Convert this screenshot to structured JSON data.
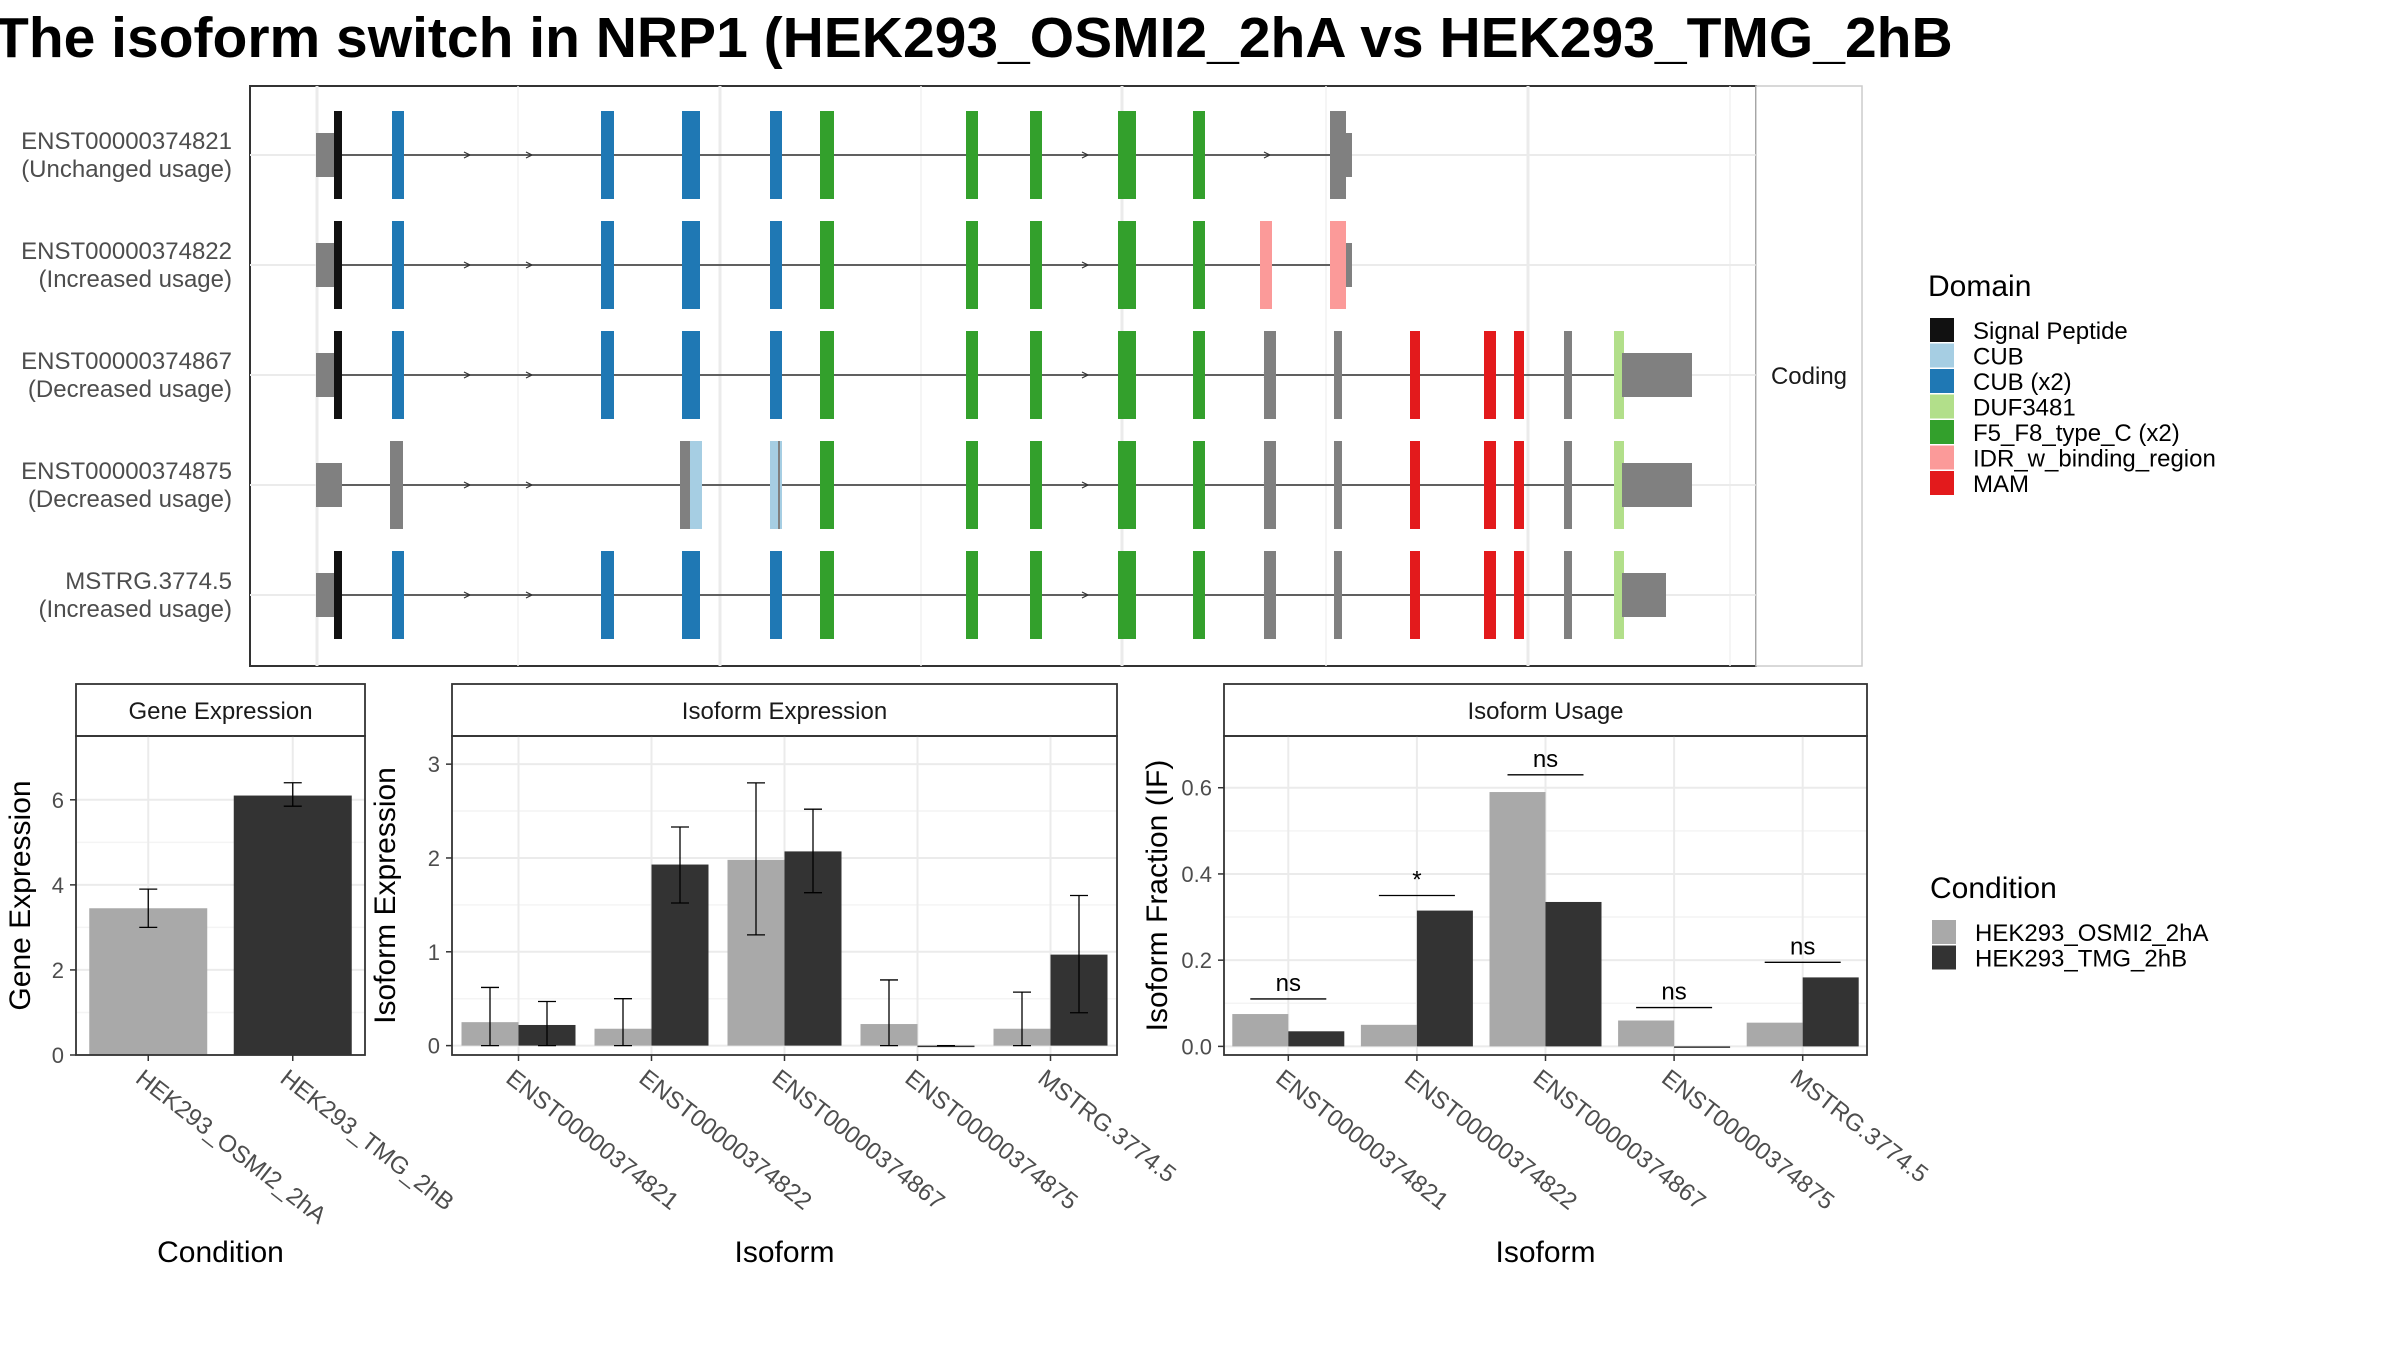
{
  "title": "The isoform switch in NRP1 (HEK293_OSMI2_2hA vs HEK293_TMG_2hB",
  "colors": {
    "condition_a": "#a9a9a9",
    "condition_b": "#333333",
    "intron": "#333333",
    "exon": "#808080",
    "panel_border": "#333333",
    "grid": "#ebebeb",
    "strip_bg": "#ffffff"
  },
  "structure": {
    "facet_label": "Coding",
    "isoforms": [
      {
        "id": "ENST00000374821",
        "usage": "(Unchanged usage)"
      },
      {
        "id": "ENST00000374822",
        "usage": "(Increased usage)"
      },
      {
        "id": "ENST00000374867",
        "usage": "(Decreased usage)"
      },
      {
        "id": "ENST00000374875",
        "usage": "(Decreased usage)"
      },
      {
        "id": "MSTRG.3774.5",
        "usage": "(Increased usage)"
      }
    ],
    "legend_title": "Domain",
    "domains": [
      {
        "name": "Signal Peptide",
        "color": "#111111"
      },
      {
        "name": "CUB",
        "color": "#a6cee3"
      },
      {
        "name": "CUB (x2)",
        "color": "#1f78b4"
      },
      {
        "name": "DUF3481",
        "color": "#b2df8a"
      },
      {
        "name": "F5_F8_type_C (x2)",
        "color": "#33a02c"
      },
      {
        "name": "IDR_w_binding_region",
        "color": "#fb9a99"
      },
      {
        "name": "MAM",
        "color": "#e31a1c"
      }
    ]
  },
  "condition_legend": {
    "title": "Condition",
    "items": [
      {
        "name": "HEK293_OSMI2_2hA",
        "color": "#a9a9a9"
      },
      {
        "name": "HEK293_TMG_2hB",
        "color": "#333333"
      }
    ]
  },
  "chart_data": [
    {
      "type": "bar",
      "title": "Gene Expression",
      "xlabel": "Condition",
      "ylabel": "Gene Expression",
      "ylim": [
        0,
        7.5
      ],
      "yticks": [
        0,
        2,
        4,
        6
      ],
      "categories": [
        "HEK293_OSMI2_2hA",
        "HEK293_TMG_2hB"
      ],
      "values": [
        3.45,
        6.1
      ],
      "error_low": [
        3.0,
        5.85
      ],
      "error_high": [
        3.9,
        6.4
      ]
    },
    {
      "type": "bar",
      "title": "Isoform Expression",
      "xlabel": "Isoform",
      "ylabel": "Isoform Expression",
      "ylim": [
        -0.1,
        3.3
      ],
      "yticks": [
        0,
        1,
        2,
        3
      ],
      "categories": [
        "ENST00000374821",
        "ENST00000374822",
        "ENST00000374867",
        "ENST00000374875",
        "MSTRG.3774.5"
      ],
      "series": [
        {
          "name": "HEK293_OSMI2_2hA",
          "values": [
            0.25,
            0.18,
            1.98,
            0.23,
            0.18
          ],
          "error_low": [
            0.0,
            0.0,
            1.18,
            0.0,
            0.0
          ],
          "error_high": [
            0.62,
            0.5,
            2.8,
            0.7,
            0.57
          ]
        },
        {
          "name": "HEK293_TMG_2hB",
          "values": [
            0.22,
            1.93,
            2.07,
            0.0,
            0.97
          ],
          "error_low": [
            0.0,
            1.52,
            1.63,
            0.0,
            0.35
          ],
          "error_high": [
            0.47,
            2.33,
            2.52,
            0.0,
            1.6
          ]
        }
      ]
    },
    {
      "type": "bar",
      "title": "Isoform Usage",
      "xlabel": "Isoform",
      "ylabel": "Isoform Fraction (IF)",
      "ylim": [
        -0.02,
        0.72
      ],
      "yticks": [
        "0.0",
        "0.2",
        "0.4",
        "0.6"
      ],
      "categories": [
        "ENST00000374821",
        "ENST00000374822",
        "ENST00000374867",
        "ENST00000374875",
        "MSTRG.3774.5"
      ],
      "series": [
        {
          "name": "HEK293_OSMI2_2hA",
          "values": [
            0.075,
            0.05,
            0.59,
            0.06,
            0.055
          ]
        },
        {
          "name": "HEK293_TMG_2hB",
          "values": [
            0.035,
            0.315,
            0.335,
            0.0,
            0.16
          ]
        }
      ],
      "significance": [
        "ns",
        "*",
        "ns",
        "ns",
        "ns"
      ],
      "significance_y": [
        0.11,
        0.35,
        0.63,
        0.09,
        0.195
      ]
    }
  ]
}
